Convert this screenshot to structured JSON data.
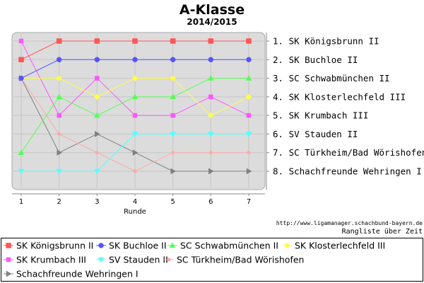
{
  "chart_data": {
    "type": "line",
    "title": "A-Klasse",
    "subtitle": "2014/2015",
    "xlabel": "Runde",
    "x": [
      1,
      2,
      3,
      4,
      5,
      6,
      7
    ],
    "ylim": [
      1,
      8
    ],
    "y_inverted": true,
    "grid": true,
    "legend_position": "bottom",
    "series": [
      {
        "name": "SK Königsbrunn II",
        "values": [
          2,
          1,
          1,
          1,
          1,
          1,
          1
        ],
        "color": "#ff5555",
        "marker": "square"
      },
      {
        "name": "SK Buchloe II",
        "values": [
          3,
          2,
          2,
          2,
          2,
          2,
          2
        ],
        "color": "#5555ff",
        "marker": "circle"
      },
      {
        "name": "SC Schwabmünchen II",
        "values": [
          7,
          4,
          5,
          4,
          4,
          3,
          3
        ],
        "color": "#55ff55",
        "marker": "triangle-up"
      },
      {
        "name": "SK Klosterlechfeld III",
        "values": [
          3,
          3,
          4,
          3,
          3,
          5,
          4
        ],
        "color": "#ffff44",
        "marker": "diamond"
      },
      {
        "name": "SK Krumbach III",
        "values": [
          1,
          5,
          3,
          5,
          5,
          4,
          5
        ],
        "color": "#ff55ff",
        "marker": "square-small"
      },
      {
        "name": "SV Stauden II",
        "values": [
          8,
          8,
          8,
          6,
          6,
          6,
          6
        ],
        "color": "#55ffff",
        "marker": "triangle-down"
      },
      {
        "name": "SC Türkheim/Bad Wörishofen",
        "values": [
          3,
          6,
          7,
          8,
          7,
          7,
          7
        ],
        "color": "#ffaaaa",
        "marker": "circle-small"
      },
      {
        "name": "Schachfreunde Wehringen I",
        "values": [
          3,
          7,
          6,
          7,
          8,
          8,
          8
        ],
        "color": "#808080",
        "marker": "triangle-right"
      }
    ],
    "rank_labels": [
      "1. SK Königsbrunn II",
      "2. SK Buchloe II",
      "3. SC Schwabmünchen II",
      "4. SK Klosterlechfeld III",
      "5. SK Krumbach III",
      "6. SV Stauden II",
      "7. SC Türkheim/Bad Wörishofen",
      "8. Schachfreunde Wehringen I"
    ],
    "source": "http://www.ligamanager.schachbund-bayern.de",
    "note": "Rangliste über Zeit"
  }
}
